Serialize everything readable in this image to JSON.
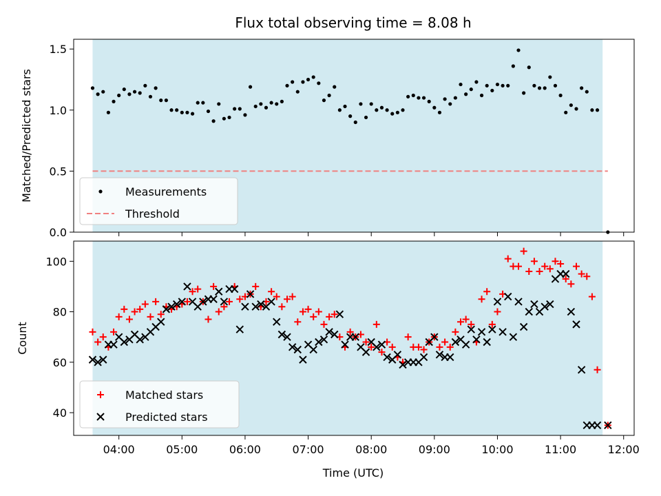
{
  "title": "Flux total observing time = 8.08 h",
  "xlabel": "Time (UTC)",
  "colors": {
    "span": "#add8e6",
    "measurement": "#000000",
    "threshold": "#f08080",
    "matched": "#ff0000",
    "predicted": "#000000"
  },
  "chart_data": [
    {
      "type": "scatter",
      "panel": "top",
      "ylabel": "Matched/Predicted stars",
      "xlim": [
        "03:17",
        "12:10"
      ],
      "ylim": [
        0,
        1.58
      ],
      "yticks": [
        0.0,
        0.5,
        1.0,
        1.5
      ],
      "ytick_labels": [
        "0.0",
        "0.5",
        "1.0",
        "1.5"
      ],
      "shaded_span": [
        "03:35",
        "11:40"
      ],
      "legend": {
        "position": "lower-left",
        "entries": [
          "Measurements",
          "Threshold"
        ]
      },
      "threshold": {
        "name": "Threshold",
        "value": 0.5,
        "x_range": [
          "03:35",
          "11:45"
        ]
      },
      "series": [
        {
          "name": "Measurements",
          "marker": "dot",
          "x": [
            "03:35",
            "03:40",
            "03:45",
            "03:50",
            "03:55",
            "04:00",
            "04:05",
            "04:10",
            "04:15",
            "04:20",
            "04:25",
            "04:30",
            "04:35",
            "04:40",
            "04:45",
            "04:50",
            "04:55",
            "05:00",
            "05:05",
            "05:10",
            "05:15",
            "05:20",
            "05:25",
            "05:30",
            "05:35",
            "05:40",
            "05:45",
            "05:50",
            "05:55",
            "06:00",
            "06:05",
            "06:10",
            "06:15",
            "06:20",
            "06:25",
            "06:30",
            "06:35",
            "06:40",
            "06:45",
            "06:50",
            "06:55",
            "07:00",
            "07:05",
            "07:10",
            "07:15",
            "07:20",
            "07:25",
            "07:30",
            "07:35",
            "07:40",
            "07:45",
            "07:50",
            "07:55",
            "08:00",
            "08:05",
            "08:10",
            "08:15",
            "08:20",
            "08:25",
            "08:30",
            "08:35",
            "08:40",
            "08:45",
            "08:50",
            "08:55",
            "09:00",
            "09:05",
            "09:10",
            "09:15",
            "09:20",
            "09:25",
            "09:30",
            "09:35",
            "09:40",
            "09:45",
            "09:50",
            "09:55",
            "10:00",
            "10:05",
            "10:10",
            "10:15",
            "10:20",
            "10:25",
            "10:30",
            "10:35",
            "10:40",
            "10:45",
            "10:50",
            "10:55",
            "11:00",
            "11:05",
            "11:10",
            "11:15",
            "11:20",
            "11:25",
            "11:30",
            "11:35",
            "11:45"
          ],
          "y": [
            1.18,
            1.13,
            1.15,
            0.98,
            1.07,
            1.12,
            1.17,
            1.13,
            1.15,
            1.14,
            1.2,
            1.11,
            1.18,
            1.08,
            1.08,
            1.0,
            1.0,
            0.98,
            0.98,
            0.97,
            1.06,
            1.06,
            0.99,
            0.91,
            1.05,
            0.93,
            0.94,
            1.01,
            1.01,
            0.96,
            1.19,
            1.03,
            1.05,
            1.02,
            1.06,
            1.05,
            1.07,
            1.2,
            1.23,
            1.15,
            1.23,
            1.25,
            1.27,
            1.22,
            1.08,
            1.12,
            1.19,
            1.0,
            1.03,
            0.95,
            0.9,
            1.05,
            0.94,
            1.05,
            1.0,
            1.02,
            1.0,
            0.97,
            0.98,
            1.0,
            1.11,
            1.12,
            1.1,
            1.1,
            1.07,
            1.02,
            0.98,
            1.09,
            1.05,
            1.1,
            1.21,
            1.13,
            1.17,
            1.23,
            1.12,
            1.2,
            1.16,
            1.21,
            1.2,
            1.2,
            1.36,
            1.49,
            1.14,
            1.35,
            1.2,
            1.18,
            1.18,
            1.27,
            1.2,
            1.12,
            0.98,
            1.04,
            1.01,
            1.18,
            1.15,
            1.0,
            1.0,
            0.0
          ]
        }
      ]
    },
    {
      "type": "scatter",
      "panel": "bottom",
      "ylabel": "Count",
      "xlabel": "Time (UTC)",
      "xlim": [
        "03:17",
        "12:10"
      ],
      "ylim": [
        31,
        108
      ],
      "yticks": [
        40,
        60,
        80,
        100
      ],
      "ytick_labels": [
        "40",
        "60",
        "80",
        "100"
      ],
      "xticks": [
        "04:00",
        "05:00",
        "06:00",
        "07:00",
        "08:00",
        "09:00",
        "10:00",
        "11:00",
        "12:00"
      ],
      "xtick_labels": [
        "04:00",
        "05:00",
        "06:00",
        "07:00",
        "08:00",
        "09:00",
        "10:00",
        "11:00",
        "12:00"
      ],
      "shaded_span": [
        "03:35",
        "11:40"
      ],
      "legend": {
        "position": "lower-left",
        "entries": [
          "Matched stars",
          "Predicted stars"
        ]
      },
      "series": [
        {
          "name": "Matched stars",
          "marker": "plus",
          "x": [
            "03:35",
            "03:40",
            "03:45",
            "03:50",
            "03:55",
            "04:00",
            "04:05",
            "04:10",
            "04:15",
            "04:20",
            "04:25",
            "04:30",
            "04:35",
            "04:40",
            "04:45",
            "04:50",
            "04:55",
            "05:00",
            "05:05",
            "05:10",
            "05:15",
            "05:20",
            "05:25",
            "05:30",
            "05:35",
            "05:40",
            "05:45",
            "05:50",
            "05:55",
            "06:00",
            "06:05",
            "06:10",
            "06:15",
            "06:20",
            "06:25",
            "06:30",
            "06:35",
            "06:40",
            "06:45",
            "06:50",
            "06:55",
            "07:00",
            "07:05",
            "07:10",
            "07:15",
            "07:20",
            "07:25",
            "07:30",
            "07:35",
            "07:40",
            "07:45",
            "07:50",
            "07:55",
            "08:00",
            "08:05",
            "08:10",
            "08:15",
            "08:20",
            "08:25",
            "08:30",
            "08:35",
            "08:40",
            "08:45",
            "08:50",
            "08:55",
            "09:00",
            "09:05",
            "09:10",
            "09:15",
            "09:20",
            "09:25",
            "09:30",
            "09:35",
            "09:40",
            "09:45",
            "09:50",
            "09:55",
            "10:00",
            "10:05",
            "10:10",
            "10:15",
            "10:20",
            "10:25",
            "10:30",
            "10:35",
            "10:40",
            "10:45",
            "10:50",
            "10:55",
            "11:00",
            "11:05",
            "11:10",
            "11:15",
            "11:20",
            "11:25",
            "11:30",
            "11:35",
            "11:45"
          ],
          "y": [
            72,
            68,
            70,
            66,
            72,
            78,
            81,
            77,
            80,
            81,
            83,
            78,
            84,
            79,
            82,
            81,
            82,
            83,
            84,
            88,
            89,
            84,
            77,
            90,
            80,
            82,
            84,
            90,
            85,
            86,
            87,
            90,
            82,
            84,
            88,
            86,
            82,
            85,
            86,
            76,
            80,
            81,
            78,
            80,
            75,
            78,
            79,
            70,
            66,
            72,
            70,
            71,
            68,
            66,
            75,
            64,
            68,
            66,
            62,
            60,
            70,
            66,
            66,
            65,
            68,
            70,
            66,
            68,
            66,
            72,
            76,
            77,
            75,
            68,
            85,
            88,
            75,
            80,
            87,
            101,
            98,
            98,
            104,
            96,
            100,
            96,
            98,
            97,
            100,
            99,
            93,
            91,
            98,
            95,
            94,
            86,
            57,
            35
          ]
        },
        {
          "name": "Predicted stars",
          "marker": "x",
          "x": [
            "03:35",
            "03:40",
            "03:45",
            "03:50",
            "03:55",
            "04:00",
            "04:05",
            "04:10",
            "04:15",
            "04:20",
            "04:25",
            "04:30",
            "04:35",
            "04:40",
            "04:45",
            "04:50",
            "04:55",
            "05:00",
            "05:05",
            "05:10",
            "05:15",
            "05:20",
            "05:25",
            "05:30",
            "05:35",
            "05:40",
            "05:45",
            "05:50",
            "05:55",
            "06:00",
            "06:05",
            "06:10",
            "06:15",
            "06:20",
            "06:25",
            "06:30",
            "06:35",
            "06:40",
            "06:45",
            "06:50",
            "06:55",
            "07:00",
            "07:05",
            "07:10",
            "07:15",
            "07:20",
            "07:25",
            "07:30",
            "07:35",
            "07:40",
            "07:45",
            "07:50",
            "07:55",
            "08:00",
            "08:05",
            "08:10",
            "08:15",
            "08:20",
            "08:25",
            "08:30",
            "08:35",
            "08:40",
            "08:45",
            "08:50",
            "08:55",
            "09:00",
            "09:05",
            "09:10",
            "09:15",
            "09:20",
            "09:25",
            "09:30",
            "09:35",
            "09:40",
            "09:45",
            "09:50",
            "09:55",
            "10:00",
            "10:05",
            "10:10",
            "10:15",
            "10:20",
            "10:25",
            "10:30",
            "10:35",
            "10:40",
            "10:45",
            "10:50",
            "10:55",
            "11:00",
            "11:05",
            "11:10",
            "11:15",
            "11:20",
            "11:25",
            "11:30",
            "11:35",
            "11:45"
          ],
          "y": [
            61,
            60,
            61,
            67,
            67,
            70,
            68,
            69,
            71,
            69,
            70,
            72,
            74,
            76,
            81,
            82,
            83,
            84,
            90,
            84,
            82,
            84,
            85,
            85,
            88,
            84,
            89,
            89,
            73,
            82,
            87,
            82,
            83,
            82,
            84,
            76,
            71,
            70,
            66,
            65,
            61,
            67,
            65,
            68,
            69,
            72,
            71,
            79,
            67,
            70,
            70,
            66,
            64,
            68,
            66,
            67,
            62,
            61,
            63,
            59,
            60,
            60,
            60,
            62,
            68,
            70,
            63,
            62,
            62,
            68,
            69,
            67,
            73,
            69,
            72,
            68,
            73,
            84,
            72,
            86,
            70,
            84,
            74,
            80,
            83,
            80,
            82,
            83,
            93,
            95,
            95,
            80,
            75,
            57,
            35,
            35,
            35,
            35
          ]
        }
      ]
    }
  ]
}
